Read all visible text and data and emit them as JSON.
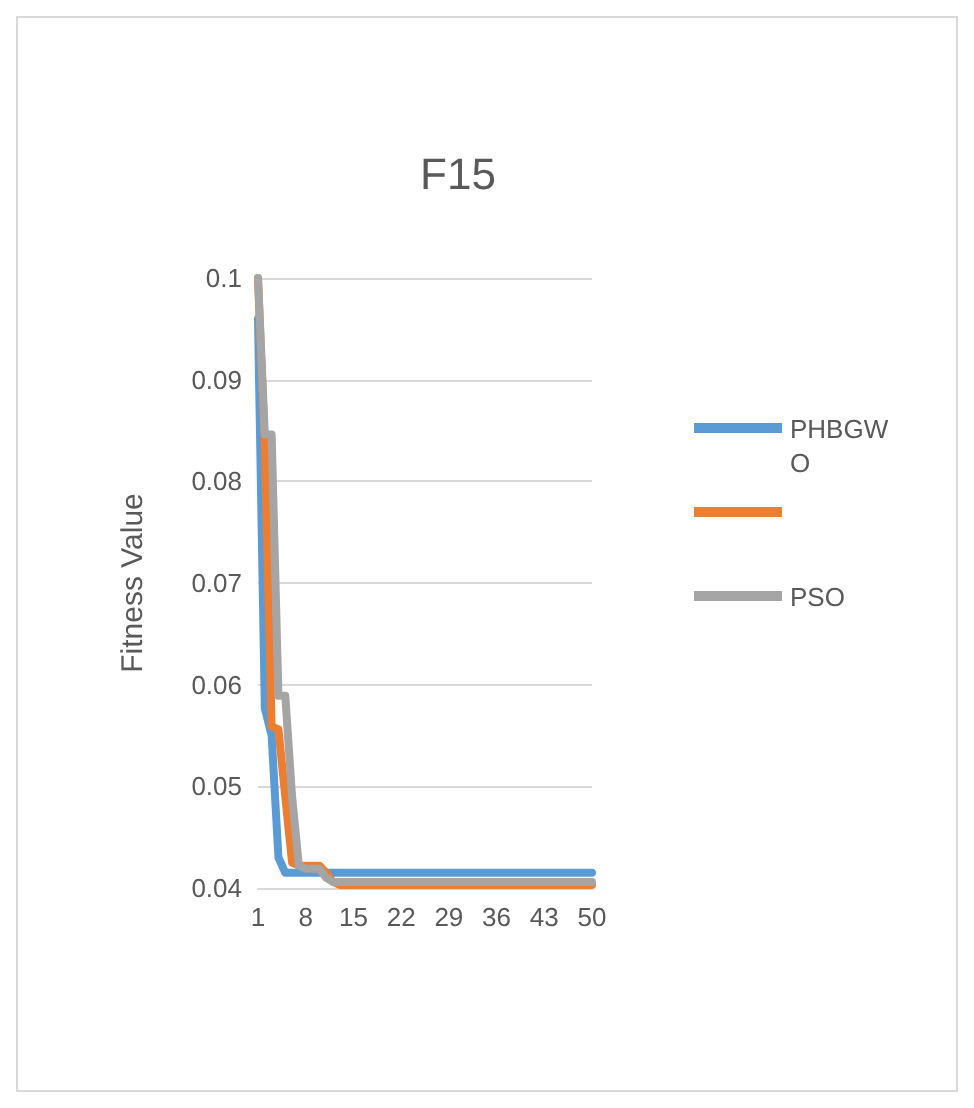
{
  "chart_data": {
    "type": "line",
    "title": "F15",
    "ylabel": "Fitness Value",
    "x": [
      1,
      2,
      3,
      4,
      5,
      6,
      7,
      8,
      9,
      10,
      11,
      12,
      13,
      14,
      15,
      16,
      17,
      18,
      19,
      20,
      21,
      22,
      23,
      24,
      25,
      26,
      27,
      28,
      29,
      30,
      31,
      32,
      33,
      34,
      35,
      36,
      37,
      38,
      39,
      40,
      41,
      42,
      43,
      44,
      45,
      46,
      47,
      48,
      49,
      50
    ],
    "series": [
      {
        "name": "PHBGWO",
        "color": "#5b9bd5",
        "values": [
          0.096,
          0.0577,
          0.055,
          0.043,
          0.0415,
          0.0415,
          0.0415,
          0.0415,
          0.0415,
          0.0415,
          0.0415,
          0.0415,
          0.0415,
          0.0415,
          0.0415,
          0.0415,
          0.0415,
          0.0415,
          0.0415,
          0.0415,
          0.0415,
          0.0415,
          0.0415,
          0.0415,
          0.0415,
          0.0415,
          0.0415,
          0.0415,
          0.0415,
          0.0415,
          0.0415,
          0.0415,
          0.0415,
          0.0415,
          0.0415,
          0.0415,
          0.0415,
          0.0415,
          0.0415,
          0.0415,
          0.0415,
          0.0415,
          0.0415,
          0.0415,
          0.0415,
          0.0415,
          0.0415,
          0.0415,
          0.0415,
          0.0415
        ]
      },
      {
        "color": "#ed7d31",
        "values": [
          0.1,
          0.0834,
          0.0559,
          0.0556,
          0.049,
          0.0425,
          0.0422,
          0.0422,
          0.0422,
          0.0422,
          0.0415,
          0.0406,
          0.0403,
          0.0403,
          0.0403,
          0.0403,
          0.0403,
          0.0403,
          0.0403,
          0.0403,
          0.0403,
          0.0403,
          0.0403,
          0.0403,
          0.0403,
          0.0403,
          0.0403,
          0.0403,
          0.0403,
          0.0403,
          0.0403,
          0.0403,
          0.0403,
          0.0403,
          0.0403,
          0.0403,
          0.0403,
          0.0403,
          0.0403,
          0.0403,
          0.0403,
          0.0403,
          0.0403,
          0.0403,
          0.0403,
          0.0403,
          0.0403,
          0.0403,
          0.0403,
          0.0403
        ]
      },
      {
        "name": "PSO",
        "color": "#a5a5a5",
        "values": [
          0.1,
          0.0846,
          0.0846,
          0.0589,
          0.0589,
          0.049,
          0.0422,
          0.0419,
          0.0419,
          0.0419,
          0.041,
          0.0406,
          0.0406,
          0.0406,
          0.0406,
          0.0406,
          0.0406,
          0.0406,
          0.0406,
          0.0406,
          0.0406,
          0.0406,
          0.0406,
          0.0406,
          0.0406,
          0.0406,
          0.0406,
          0.0406,
          0.0406,
          0.0406,
          0.0406,
          0.0406,
          0.0406,
          0.0406,
          0.0406,
          0.0406,
          0.0406,
          0.0406,
          0.0406,
          0.0406,
          0.0406,
          0.0406,
          0.0406,
          0.0406,
          0.0406,
          0.0406,
          0.0406,
          0.0406,
          0.0406,
          0.0406
        ]
      }
    ],
    "xlim": [
      1,
      50
    ],
    "xticks": [
      1,
      8,
      15,
      22,
      29,
      36,
      43,
      50
    ],
    "ylim": [
      0.04,
      0.1
    ],
    "yticks": [
      0.04,
      0.05,
      0.06,
      0.07,
      0.08,
      0.09,
      0.1
    ],
    "grid": "y",
    "legend": "right",
    "marker": "none",
    "line_style": "solid"
  }
}
